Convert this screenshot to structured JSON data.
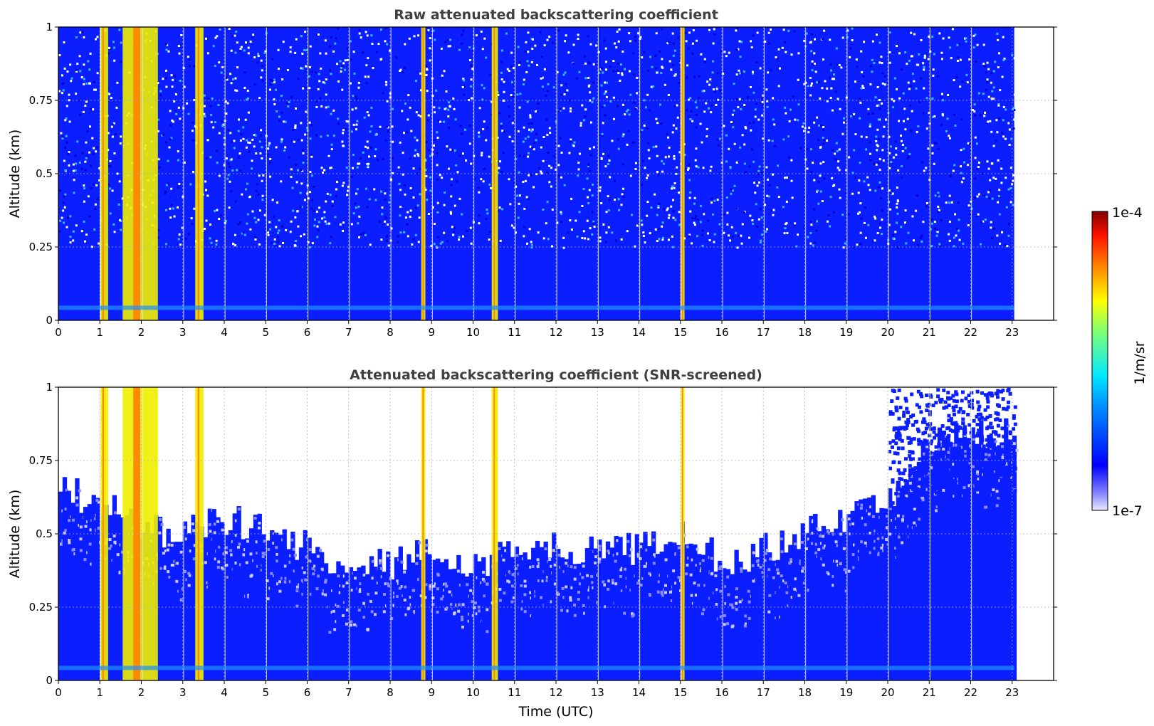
{
  "chart_data": [
    {
      "type": "heatmap",
      "title": "Raw attenuated backscattering coefficient",
      "ylabel": "Altitude (km)",
      "xlabel": "",
      "xlim": [
        0,
        24
      ],
      "ylim": [
        0,
        1
      ],
      "x_ticks": [
        "0",
        "1",
        "2",
        "3",
        "4",
        "5",
        "6",
        "7",
        "8",
        "9",
        "10",
        "11",
        "12",
        "13",
        "14",
        "15",
        "16",
        "17",
        "18",
        "19",
        "20",
        "21",
        "22",
        "23"
      ],
      "y_ticks": [
        "0",
        "0.25",
        "0.5",
        "0.75",
        "1"
      ],
      "data_end_hour": 23.05,
      "grid": true,
      "color_scale": "log",
      "background_level": "blue, noisy above 0.25 km",
      "high_signal_columns_hours": [
        {
          "start": 1.0,
          "end": 1.2
        },
        {
          "start": 1.55,
          "end": 2.4
        },
        {
          "start": 3.3,
          "end": 3.5
        },
        {
          "start": 8.75,
          "end": 8.85
        },
        {
          "start": 10.45,
          "end": 10.6
        },
        {
          "start": 15.0,
          "end": 15.1
        }
      ]
    },
    {
      "type": "heatmap",
      "title": "Attenuated backscattering coefficient (SNR-screened)",
      "ylabel": "Altitude (km)",
      "xlabel": "Time (UTC)",
      "xlim": [
        0,
        24
      ],
      "ylim": [
        0,
        1
      ],
      "x_ticks": [
        "0",
        "1",
        "2",
        "3",
        "4",
        "5",
        "6",
        "7",
        "8",
        "9",
        "10",
        "11",
        "12",
        "13",
        "14",
        "15",
        "16",
        "17",
        "18",
        "19",
        "20",
        "21",
        "22",
        "23"
      ],
      "y_ticks": [
        "0",
        "0.25",
        "0.5",
        "0.75",
        "1"
      ],
      "data_end_hour": 23.05,
      "grid": true,
      "color_scale": "log",
      "screened_top_km": [
        {
          "hour": 0,
          "alt": 0.65
        },
        {
          "hour": 1,
          "alt": 0.6
        },
        {
          "hour": 2.5,
          "alt": 0.5
        },
        {
          "hour": 4,
          "alt": 0.55
        },
        {
          "hour": 5,
          "alt": 0.5
        },
        {
          "hour": 6,
          "alt": 0.45
        },
        {
          "hour": 7,
          "alt": 0.4
        },
        {
          "hour": 8,
          "alt": 0.4
        },
        {
          "hour": 9,
          "alt": 0.45
        },
        {
          "hour": 10,
          "alt": 0.4
        },
        {
          "hour": 11,
          "alt": 0.45
        },
        {
          "hour": 12,
          "alt": 0.45
        },
        {
          "hour": 13,
          "alt": 0.45
        },
        {
          "hour": 14,
          "alt": 0.45
        },
        {
          "hour": 15,
          "alt": 0.5
        },
        {
          "hour": 16,
          "alt": 0.4
        },
        {
          "hour": 17,
          "alt": 0.45
        },
        {
          "hour": 18,
          "alt": 0.5
        },
        {
          "hour": 19,
          "alt": 0.55
        },
        {
          "hour": 20,
          "alt": 0.6
        },
        {
          "hour": 21,
          "alt": 0.8
        },
        {
          "hour": 22,
          "alt": 0.85
        },
        {
          "hour": 23,
          "alt": 0.85
        }
      ]
    }
  ],
  "colorbar": {
    "label": "1/m/sr",
    "max_label": "1e-4",
    "min_label": "1e-7",
    "colormap": "jet",
    "scale": "log"
  },
  "colors": {
    "background": "#0a1eff",
    "deep_blue": "#0000cc",
    "cyan": "#00e0ff",
    "yellow": "#f0f000",
    "orange": "#ff8c00",
    "red": "#ff2000",
    "dark_red": "#800000"
  }
}
